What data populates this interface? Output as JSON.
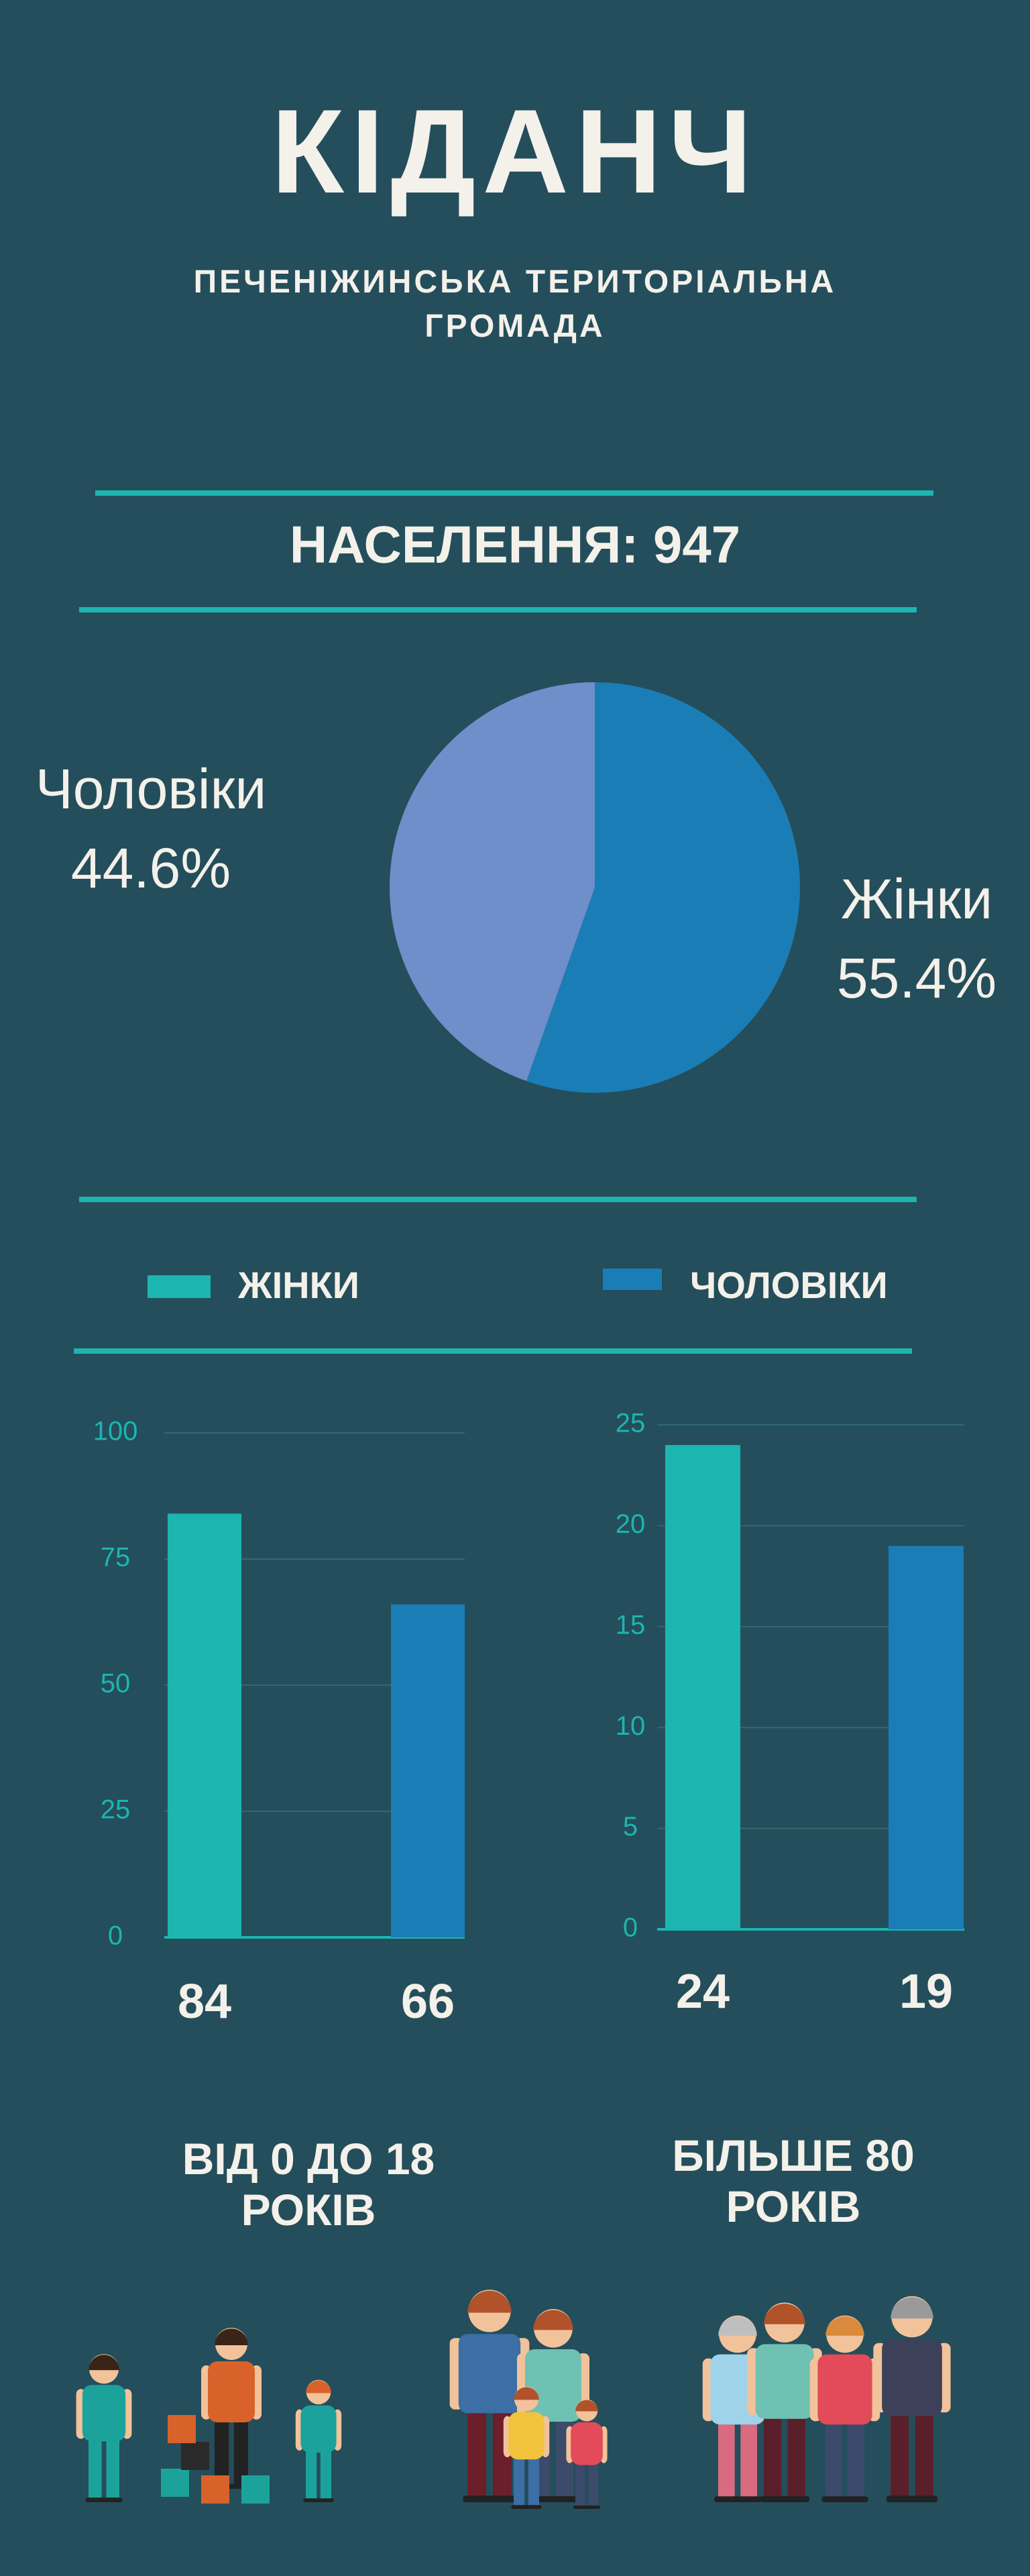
{
  "header": {
    "title": "КІДАНЧ",
    "subtitle": "ПЕЧЕНІЖИНСЬКА ТЕРИТОРІАЛЬНА ГРОМАДА",
    "population": "НАСЕЛЕННЯ: 947"
  },
  "legend": [
    {
      "name": "ЖІНКИ",
      "color": "#1cb5b0"
    },
    {
      "name": "ЧОЛОВІКИ",
      "color": "#1b7db5"
    }
  ],
  "chart_data": [
    {
      "type": "pie",
      "categories": [
        "Чоловіки",
        "Жінки"
      ],
      "values": [
        44.6,
        55.4
      ],
      "value_labels": [
        "44.6%",
        "55.4%"
      ],
      "colors": [
        "#6e8fca",
        "#1b7db5"
      ]
    },
    {
      "type": "bar",
      "caption": "ВІД 0 ДО 18 РОКІВ",
      "values": [
        84,
        66
      ],
      "colors": [
        "#1cb5b0",
        "#1b7db5"
      ],
      "ylim": [
        0,
        100
      ],
      "yticks": [
        0,
        25,
        50,
        75,
        100
      ],
      "grid": true
    },
    {
      "type": "bar",
      "caption": "БІЛЬШЕ 80 РОКІВ",
      "values": [
        24,
        19
      ],
      "colors": [
        "#1cb5b0",
        "#1b7db5"
      ],
      "ylim": [
        0,
        25
      ],
      "yticks": [
        0,
        5,
        10,
        15,
        20,
        25
      ],
      "grid": true
    }
  ]
}
